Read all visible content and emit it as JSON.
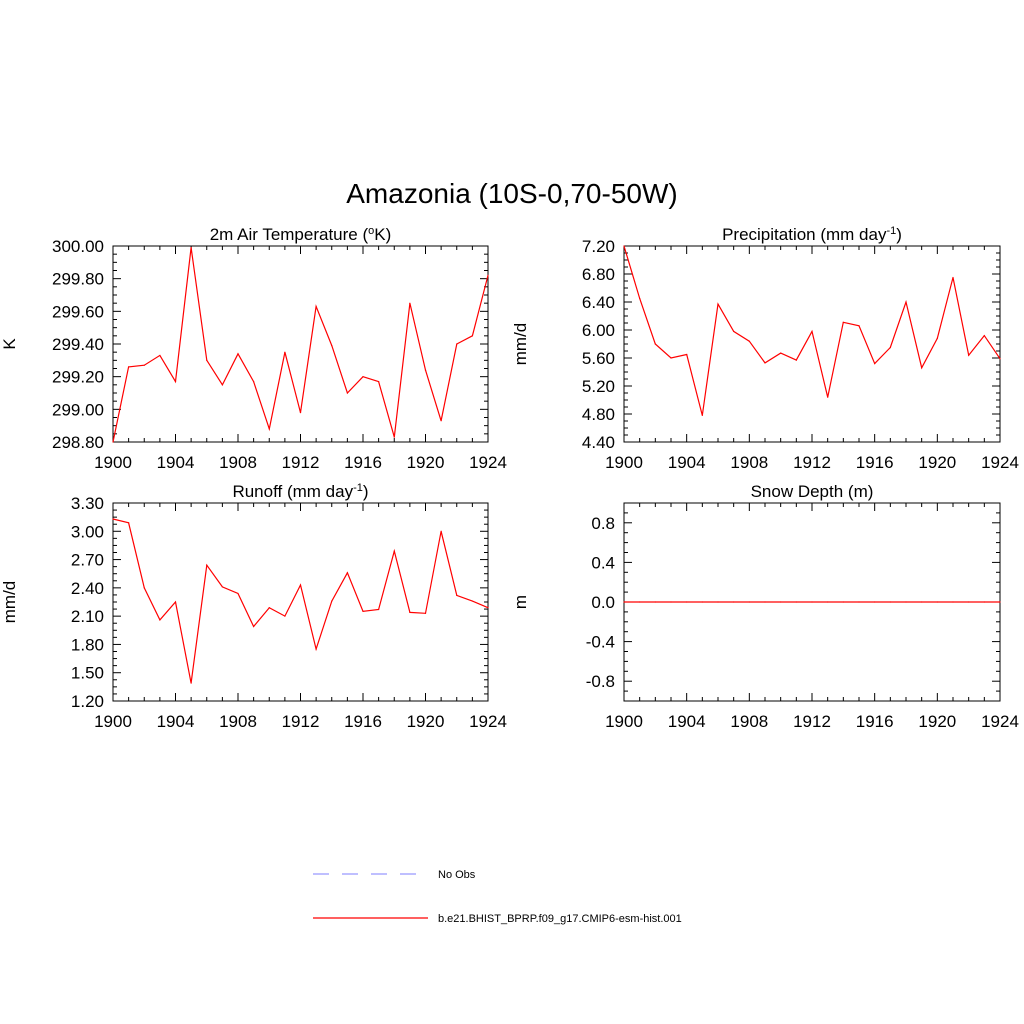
{
  "figure": {
    "title": "Amazonia (10S-0,70-50W)",
    "series_color": "#ff0000",
    "legend": [
      {
        "label": "No Obs",
        "color": "#9999ff",
        "style": "dashed"
      },
      {
        "label": "b.e21.BHIST_BPRP.f09_g17.CMIP6-esm-hist.001",
        "color": "#ff0000",
        "style": "solid"
      }
    ]
  },
  "chart_data": [
    {
      "type": "line",
      "title": "2m Air Temperature",
      "title_unit": "K",
      "title_prefix": "(",
      "title_sup": "o",
      "title_suffix": ")",
      "ylabel": "K",
      "xlim": [
        1900,
        1924
      ],
      "ylim": [
        298.8,
        300.0
      ],
      "xticks": [
        1900,
        1904,
        1908,
        1912,
        1916,
        1920,
        1924
      ],
      "yticks": [
        "298.80",
        "299.00",
        "299.20",
        "299.40",
        "299.60",
        "299.80",
        "300.00"
      ],
      "grid": false,
      "series": [
        {
          "x": [
            1900,
            1901,
            1902,
            1903,
            1904,
            1905,
            1906,
            1907,
            1908,
            1909,
            1910,
            1911,
            1912,
            1913,
            1914,
            1915,
            1916,
            1917,
            1918,
            1919,
            1920,
            1921,
            1922,
            1923,
            1924
          ],
          "values": [
            298.8,
            299.26,
            299.27,
            299.33,
            299.17,
            299.99,
            299.3,
            299.15,
            299.34,
            299.17,
            298.88,
            299.35,
            298.98,
            299.63,
            299.39,
            299.1,
            299.2,
            299.17,
            298.83,
            299.65,
            299.24,
            298.93,
            299.4,
            299.45,
            299.82
          ]
        }
      ]
    },
    {
      "type": "line",
      "title": "Precipitation",
      "title_prefix": "(mm day",
      "title_sup": "-1",
      "title_suffix": ")",
      "ylabel": "mm/d",
      "xlim": [
        1900,
        1924
      ],
      "ylim": [
        4.4,
        7.2
      ],
      "xticks": [
        1900,
        1904,
        1908,
        1912,
        1916,
        1920,
        1924
      ],
      "yticks": [
        "4.40",
        "4.80",
        "5.20",
        "5.60",
        "6.00",
        "6.40",
        "6.80",
        "7.20"
      ],
      "grid": false,
      "series": [
        {
          "x": [
            1900,
            1901,
            1902,
            1903,
            1904,
            1905,
            1906,
            1907,
            1908,
            1909,
            1910,
            1911,
            1912,
            1913,
            1914,
            1915,
            1916,
            1917,
            1918,
            1919,
            1920,
            1921,
            1922,
            1923,
            1924
          ],
          "values": [
            7.2,
            6.45,
            5.8,
            5.6,
            5.65,
            4.78,
            6.37,
            5.98,
            5.84,
            5.53,
            5.67,
            5.57,
            5.98,
            5.04,
            6.11,
            6.06,
            5.52,
            5.75,
            6.4,
            5.46,
            5.88,
            6.75,
            5.64,
            5.92,
            5.59
          ]
        }
      ]
    },
    {
      "type": "line",
      "title": "Runoff",
      "title_prefix": "(mm day",
      "title_sup": "-1",
      "title_suffix": ")",
      "ylabel": "mm/d",
      "xlim": [
        1900,
        1924
      ],
      "ylim": [
        1.2,
        3.3
      ],
      "xticks": [
        1900,
        1904,
        1908,
        1912,
        1916,
        1920,
        1924
      ],
      "yticks": [
        "1.20",
        "1.50",
        "1.80",
        "2.10",
        "2.40",
        "2.70",
        "3.00",
        "3.30"
      ],
      "grid": false,
      "series": [
        {
          "x": [
            1900,
            1901,
            1902,
            1903,
            1904,
            1905,
            1906,
            1907,
            1908,
            1909,
            1910,
            1911,
            1912,
            1913,
            1914,
            1915,
            1916,
            1917,
            1918,
            1919,
            1920,
            1921,
            1922,
            1923,
            1924
          ],
          "values": [
            3.13,
            3.09,
            2.4,
            2.06,
            2.25,
            1.39,
            2.64,
            2.41,
            2.34,
            1.99,
            2.19,
            2.1,
            2.43,
            1.75,
            2.26,
            2.56,
            2.15,
            2.17,
            2.79,
            2.14,
            2.13,
            3.0,
            2.32,
            2.26,
            2.19
          ]
        }
      ]
    },
    {
      "type": "line",
      "title": "Snow Depth",
      "title_prefix": "(m)",
      "title_sup": "",
      "title_suffix": "",
      "ylabel": "m",
      "xlim": [
        1900,
        1924
      ],
      "ylim": [
        -1.0,
        1.0
      ],
      "xticks": [
        1900,
        1904,
        1908,
        1912,
        1916,
        1920,
        1924
      ],
      "yticks": [
        "-0.8",
        "-0.4",
        "0.0",
        "0.4",
        "0.8"
      ],
      "ytick_values": [
        -0.8,
        -0.4,
        0.0,
        0.4,
        0.8
      ],
      "grid": false,
      "series": [
        {
          "x": [
            1900,
            1901,
            1902,
            1903,
            1904,
            1905,
            1906,
            1907,
            1908,
            1909,
            1910,
            1911,
            1912,
            1913,
            1914,
            1915,
            1916,
            1917,
            1918,
            1919,
            1920,
            1921,
            1922,
            1923,
            1924
          ],
          "values": [
            0,
            0,
            0,
            0,
            0,
            0,
            0,
            0,
            0,
            0,
            0,
            0,
            0,
            0,
            0,
            0,
            0,
            0,
            0,
            0,
            0,
            0,
            0,
            0,
            0
          ]
        }
      ]
    }
  ]
}
